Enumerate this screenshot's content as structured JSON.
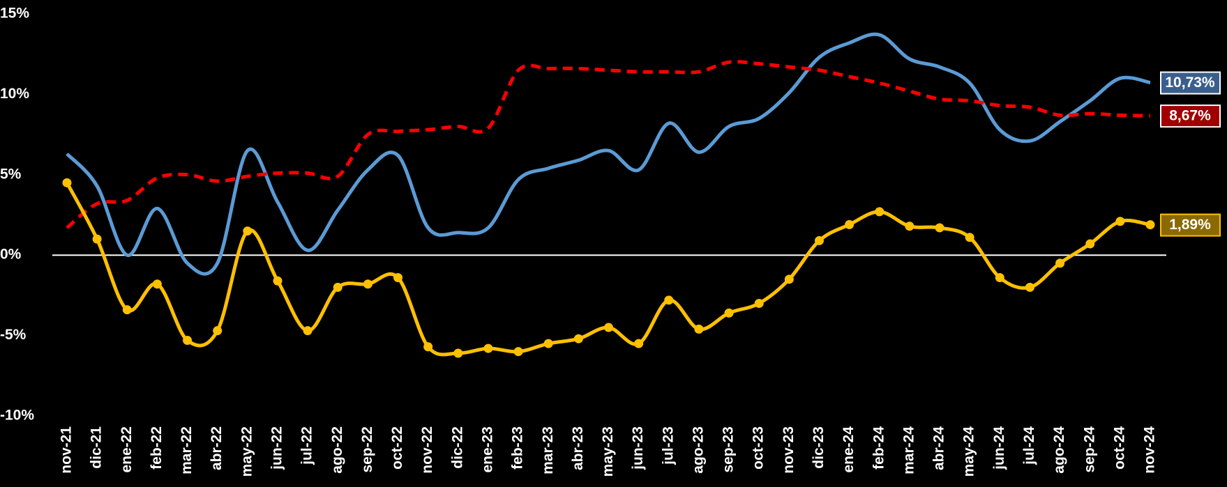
{
  "chart_data": {
    "type": "line",
    "categories": [
      "nov-21",
      "dic-21",
      "ene-22",
      "feb-22",
      "mar-22",
      "abr-22",
      "may-22",
      "jun-22",
      "jul-22",
      "ago-22",
      "sep-22",
      "oct-22",
      "nov-22",
      "dic-22",
      "ene-23",
      "feb-23",
      "mar-23",
      "abr-23",
      "may-23",
      "jun-23",
      "jul-23",
      "ago-23",
      "sep-23",
      "oct-23",
      "nov-23",
      "dic-23",
      "ene-24",
      "feb-24",
      "mar-24",
      "abr-24",
      "may-24",
      "jun-24",
      "jul-24",
      "ago-24",
      "sep-24",
      "oct-24",
      "nov-24"
    ],
    "ylim": [
      -10,
      15
    ],
    "yticks": [
      {
        "value": -10,
        "label": "-10%"
      },
      {
        "value": -5,
        "label": "-5%"
      },
      {
        "value": 0,
        "label": "0%"
      },
      {
        "value": 5,
        "label": "5%"
      },
      {
        "value": 10,
        "label": "10%"
      },
      {
        "value": 15,
        "label": "15%"
      }
    ],
    "grid": false,
    "series": [
      {
        "color": "#5b9bd5",
        "label_fill": "#3b5f8c",
        "dash": false,
        "markers": false,
        "values": [
          6.3,
          4.3,
          0.0,
          2.9,
          -0.5,
          -0.5,
          6.5,
          3.3,
          0.3,
          2.8,
          5.3,
          6.2,
          1.7,
          1.4,
          1.7,
          4.7,
          5.4,
          5.9,
          6.5,
          5.3,
          8.2,
          6.4,
          8.0,
          8.5,
          10.1,
          12.3,
          13.2,
          13.7,
          12.2,
          11.7,
          10.7,
          7.8,
          7.1,
          8.3,
          9.6,
          11.0,
          10.73
        ],
        "value_labels": [
          null,
          null,
          null,
          null,
          null,
          null,
          null,
          null,
          null,
          null,
          null,
          null,
          null,
          null,
          null,
          null,
          null,
          null,
          null,
          null,
          null,
          null,
          null,
          null,
          null,
          null,
          null,
          null,
          null,
          null,
          null,
          null,
          null,
          null,
          null,
          null,
          "10,73%"
        ]
      },
      {
        "color": "#ff0000",
        "label_fill": "#a00000",
        "dash": true,
        "markers": false,
        "values": [
          1.7,
          3.2,
          3.4,
          4.8,
          5.0,
          4.6,
          4.9,
          5.1,
          5.1,
          4.9,
          7.5,
          7.7,
          7.8,
          8.0,
          7.9,
          11.5,
          11.6,
          11.6,
          11.5,
          11.4,
          11.4,
          11.4,
          12.0,
          11.9,
          11.7,
          11.5,
          11.1,
          10.7,
          10.2,
          9.7,
          9.6,
          9.3,
          9.2,
          8.7,
          8.8,
          8.7,
          8.67
        ],
        "value_labels": [
          null,
          null,
          null,
          null,
          null,
          null,
          null,
          null,
          null,
          null,
          null,
          null,
          null,
          null,
          null,
          null,
          null,
          null,
          null,
          null,
          null,
          null,
          null,
          null,
          null,
          null,
          null,
          null,
          null,
          null,
          null,
          null,
          null,
          null,
          null,
          null,
          "8,67%"
        ]
      },
      {
        "color": "#ffc000",
        "label_fill": "#8a6a00",
        "dash": false,
        "markers": true,
        "values": [
          4.5,
          1.0,
          -3.4,
          -1.8,
          -5.3,
          -4.7,
          1.5,
          -1.6,
          -4.7,
          -2.0,
          -1.8,
          -1.4,
          -5.7,
          -6.1,
          -5.8,
          -6.0,
          -5.5,
          -5.2,
          -4.5,
          -5.5,
          -2.8,
          -4.6,
          -3.6,
          -3.0,
          -1.5,
          0.9,
          1.9,
          2.7,
          1.8,
          1.7,
          1.1,
          -1.4,
          -2.0,
          -0.5,
          0.7,
          2.1,
          1.89
        ],
        "value_labels": [
          null,
          null,
          null,
          null,
          null,
          null,
          null,
          null,
          null,
          null,
          null,
          null,
          null,
          null,
          null,
          null,
          null,
          null,
          null,
          null,
          null,
          null,
          null,
          null,
          null,
          null,
          null,
          null,
          null,
          null,
          null,
          null,
          null,
          null,
          null,
          null,
          "1,89%"
        ]
      }
    ]
  }
}
